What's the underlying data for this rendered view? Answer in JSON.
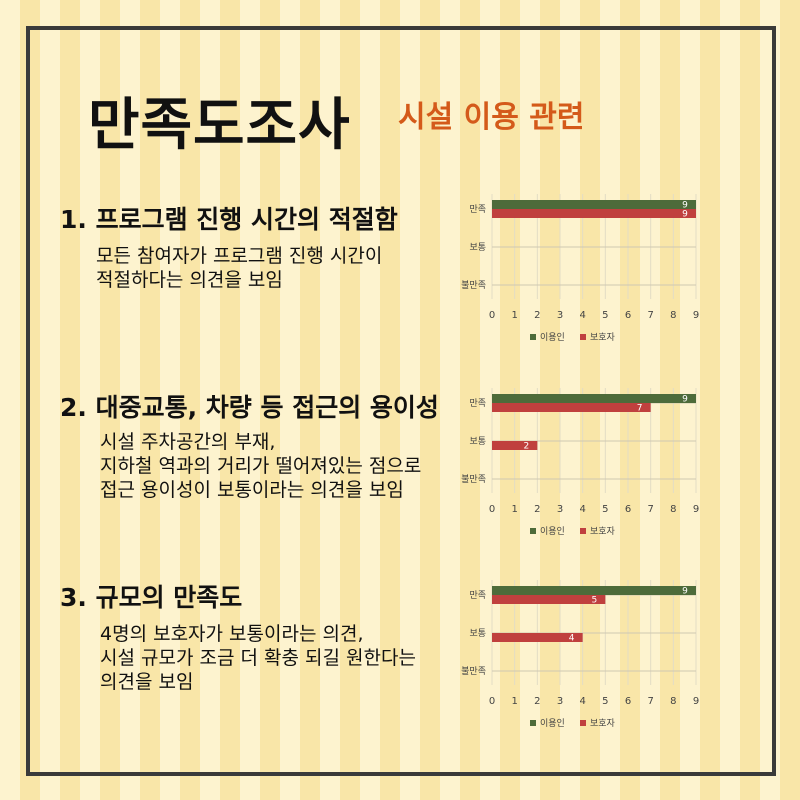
{
  "title": "만족도조사",
  "subtitle": "시설 이용 관련",
  "colors": {
    "series_user": "#4d6b3a",
    "series_guardian": "#c0403e",
    "subtitle": "#d45a1a"
  },
  "sections": [
    {
      "heading": "1. 프로그램 진행 시간의 적절함",
      "body_lines": [
        "모든 참여자가 프로그램 진행 시간이",
        "적절하다는 의견을 보임"
      ]
    },
    {
      "heading": "2. 대중교통, 차량 등 접근의 용이성",
      "body_lines": [
        "시설 주차공간의 부재,",
        "지하철 역과의 거리가 떨어져있는 점으로",
        "접근 용이성이 보통이라는 의견을 보임"
      ]
    },
    {
      "heading": "3. 규모의 만족도",
      "body_lines": [
        "4명의 보호자가 보통이라는 의견,",
        "시설 규모가 조금 더 확충 되길 원한다는",
        "의견을 보임"
      ]
    }
  ],
  "chart_data": [
    {
      "type": "bar",
      "orientation": "horizontal",
      "categories": [
        "만족",
        "보통",
        "불만족"
      ],
      "series": [
        {
          "name": "이용인",
          "values": [
            9,
            0,
            0
          ]
        },
        {
          "name": "보호자",
          "values": [
            9,
            0,
            0
          ]
        }
      ],
      "xlim": [
        0,
        9
      ],
      "ticks": [
        "0",
        "1",
        "2",
        "3",
        "4",
        "5",
        "6",
        "7",
        "8",
        "9"
      ],
      "legend_position": "bottom",
      "grid": true
    },
    {
      "type": "bar",
      "orientation": "horizontal",
      "categories": [
        "만족",
        "보통",
        "불만족"
      ],
      "series": [
        {
          "name": "이용인",
          "values": [
            9,
            0,
            0
          ]
        },
        {
          "name": "보호자",
          "values": [
            7,
            2,
            0
          ]
        }
      ],
      "xlim": [
        0,
        9
      ],
      "ticks": [
        "0",
        "1",
        "2",
        "3",
        "4",
        "5",
        "6",
        "7",
        "8",
        "9"
      ],
      "legend_position": "bottom",
      "grid": true
    },
    {
      "type": "bar",
      "orientation": "horizontal",
      "categories": [
        "만족",
        "보통",
        "불만족"
      ],
      "series": [
        {
          "name": "이용인",
          "values": [
            9,
            0,
            0
          ]
        },
        {
          "name": "보호자",
          "values": [
            5,
            4,
            0
          ]
        }
      ],
      "xlim": [
        0,
        9
      ],
      "ticks": [
        "0",
        "1",
        "2",
        "3",
        "4",
        "5",
        "6",
        "7",
        "8",
        "9"
      ],
      "legend_position": "bottom",
      "grid": true
    }
  ]
}
